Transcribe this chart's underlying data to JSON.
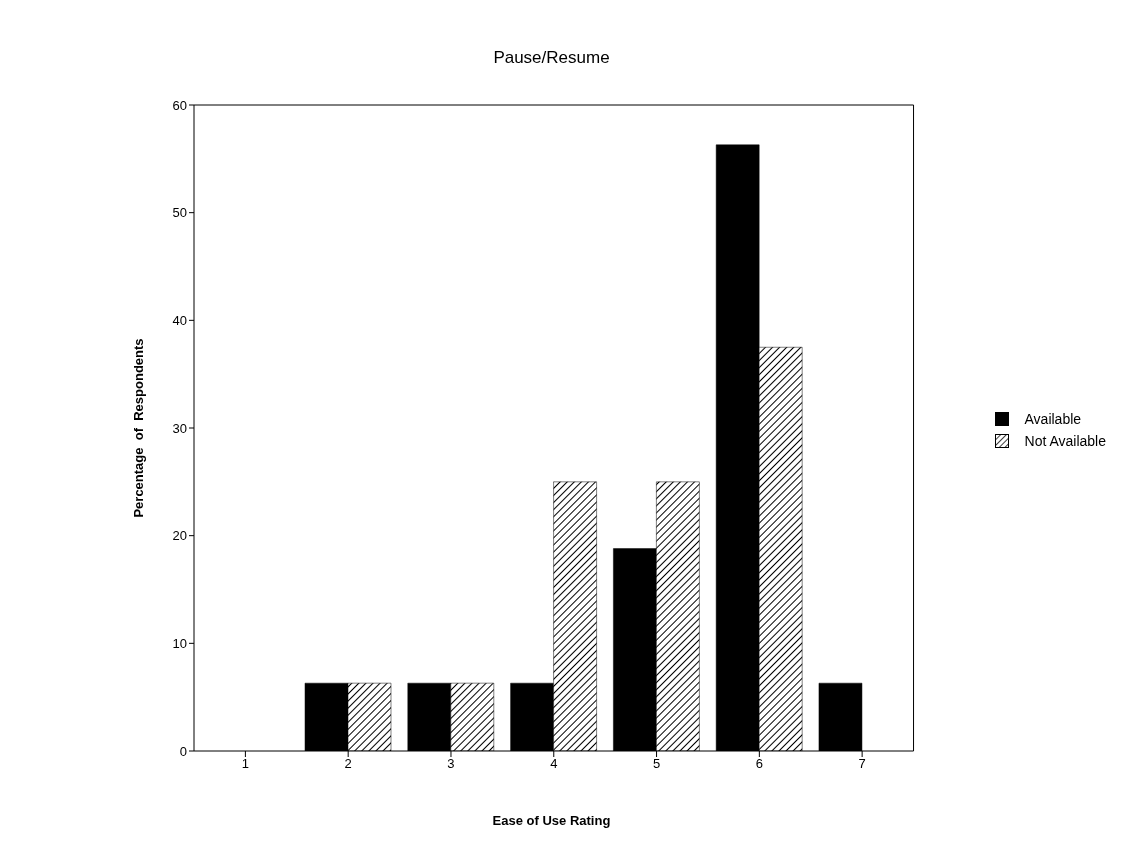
{
  "chart_data": {
    "type": "bar",
    "title": "Pause/Resume",
    "xlabel": "Ease of Use Rating",
    "ylabel": "Percentage  of  Respondents",
    "categories": [
      "1",
      "2",
      "3",
      "4",
      "5",
      "6",
      "7"
    ],
    "series": [
      {
        "name": "Available",
        "color": "#000000",
        "values": [
          0,
          6.3,
          6.3,
          6.3,
          18.8,
          56.3,
          6.3
        ]
      },
      {
        "name": "Not Available",
        "color": "#000000",
        "values": [
          0,
          6.3,
          6.3,
          25,
          25,
          37.5,
          0
        ]
      }
    ],
    "ylim": [
      0,
      60
    ],
    "yticks": [
      0,
      10,
      20,
      30,
      40,
      50,
      60
    ],
    "grid": false,
    "legend": "right"
  }
}
